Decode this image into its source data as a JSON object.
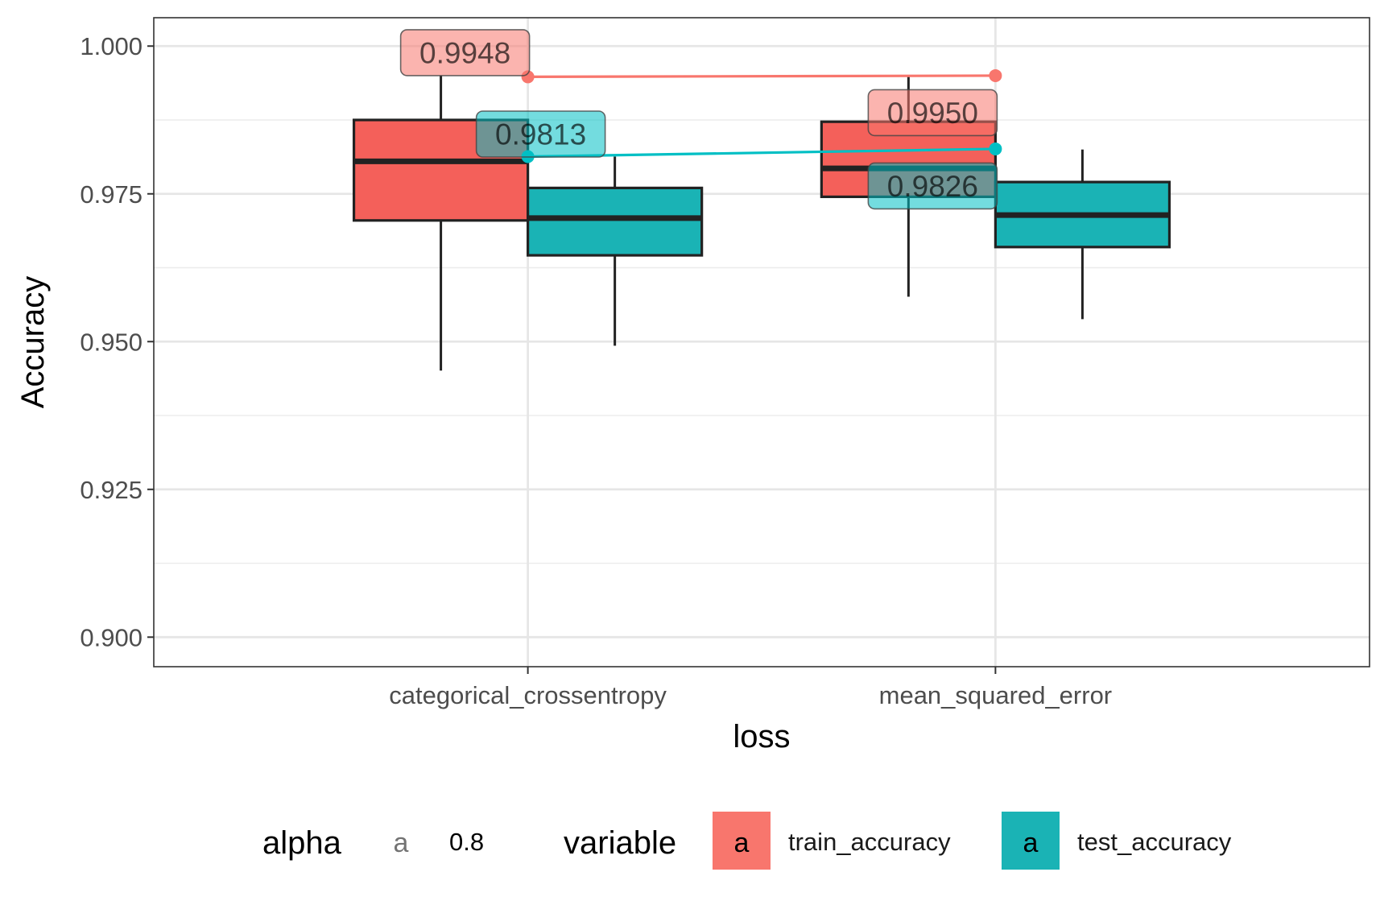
{
  "chart_data": {
    "type": "box",
    "title": "",
    "xlabel": "loss",
    "ylabel": "Accuracy",
    "ylim": [
      0.895,
      1.0048
    ],
    "yticks": [
      "0.900",
      "0.925",
      "0.950",
      "0.975",
      "1.000"
    ],
    "ytick_values": [
      0.9,
      0.925,
      0.95,
      0.975,
      1.0
    ],
    "grid": true,
    "legend_position": "bottom",
    "categories": [
      "categorical_crossentropy",
      "mean_squared_error"
    ],
    "series": [
      {
        "name": "train_accuracy",
        "color": "#F8766D",
        "boxes": [
          {
            "whisker_low": 0.9451,
            "q1": 0.9705,
            "median": 0.9805,
            "q3": 0.9875,
            "whisker_high": 0.995
          },
          {
            "whisker_low": 0.9576,
            "q1": 0.9745,
            "median": 0.9793,
            "q3": 0.9872,
            "whisker_high": 0.995
          }
        ],
        "mean_points": [
          0.9948,
          0.995
        ],
        "mean_labels": [
          "0.9948",
          "0.9950"
        ]
      },
      {
        "name": "test_accuracy",
        "color": "#00BFC4",
        "boxes": [
          {
            "whisker_low": 0.9493,
            "q1": 0.9646,
            "median": 0.9709,
            "q3": 0.976,
            "whisker_high": 0.9813
          },
          {
            "whisker_low": 0.9538,
            "q1": 0.966,
            "median": 0.9714,
            "q3": 0.977,
            "whisker_high": 0.9825
          }
        ],
        "mean_points": [
          0.9813,
          0.9826
        ],
        "mean_labels": [
          "0.9813",
          "0.9826"
        ]
      }
    ],
    "legend": {
      "alpha": {
        "title": "alpha",
        "key": "a",
        "label": "0.8"
      },
      "variable": {
        "title": "variable",
        "keys": [
          "a",
          "a"
        ],
        "labels": [
          "train_accuracy",
          "test_accuracy"
        ]
      }
    }
  }
}
